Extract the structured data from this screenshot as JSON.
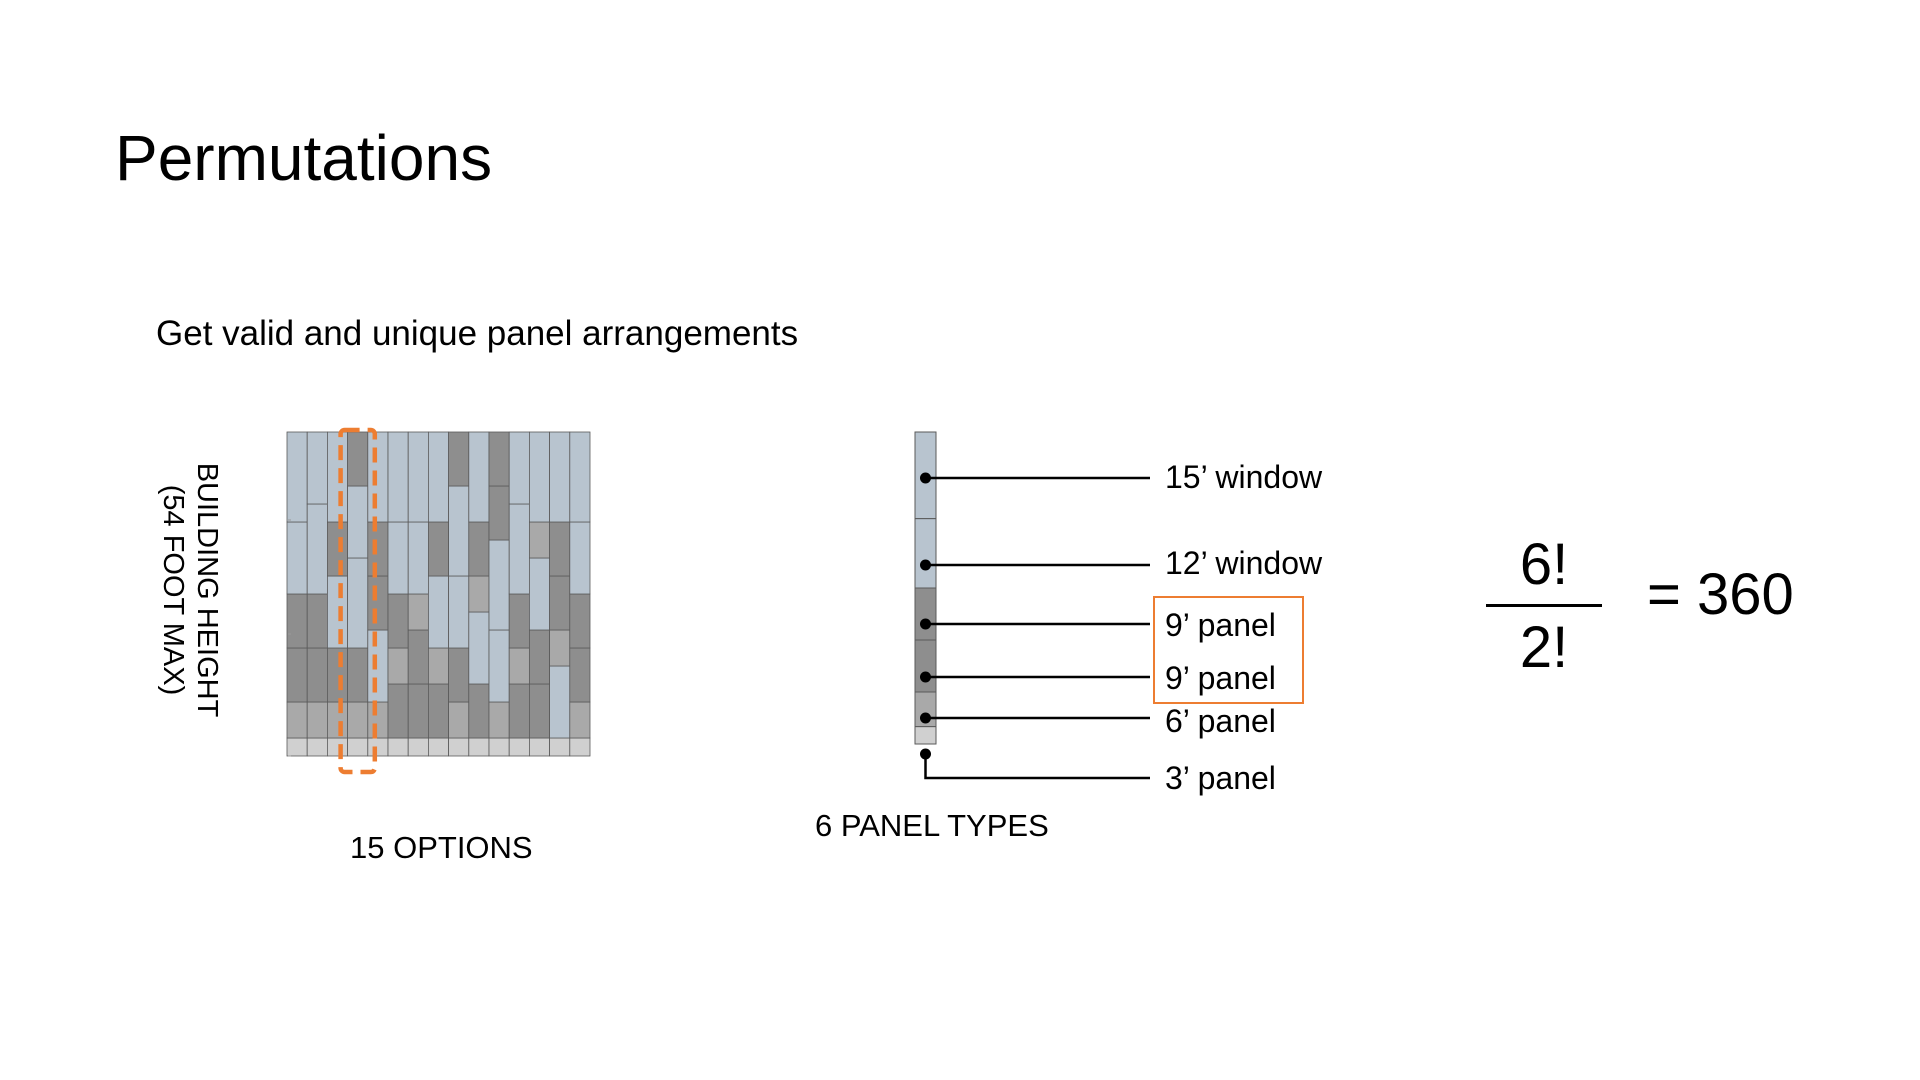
{
  "slide": {
    "title": "Permutations",
    "subtitle": "Get valid and unique panel arrangements"
  },
  "options_chart": {
    "y_label_line1": "BUILDING HEIGHT",
    "y_label_line2": "(54 FOOT MAX)",
    "caption": "15 OPTIONS",
    "highlight_color": "#ED7D31",
    "highlighted_column": 3
  },
  "panel_stack": {
    "caption": "6 PANEL TYPES",
    "callouts": [
      {
        "label": "15’ window",
        "height_ft": 15
      },
      {
        "label": "12’ window",
        "height_ft": 12
      },
      {
        "label": "9’ panel",
        "height_ft": 9
      },
      {
        "label": "9’ panel",
        "height_ft": 9
      },
      {
        "label": "6’ panel",
        "height_ft": 6
      },
      {
        "label": "3’ panel",
        "height_ft": 3
      }
    ],
    "highlight_color": "#ED7D31"
  },
  "formula": {
    "numerator": "6!",
    "denominator": "2!",
    "result": "= 360"
  },
  "colors": {
    "window": "#B8C4CF",
    "panel_9": "#8E8E8E",
    "panel_6": "#A9A9A9",
    "panel_3": "#D0D0D0",
    "accent": "#ED7D31"
  }
}
